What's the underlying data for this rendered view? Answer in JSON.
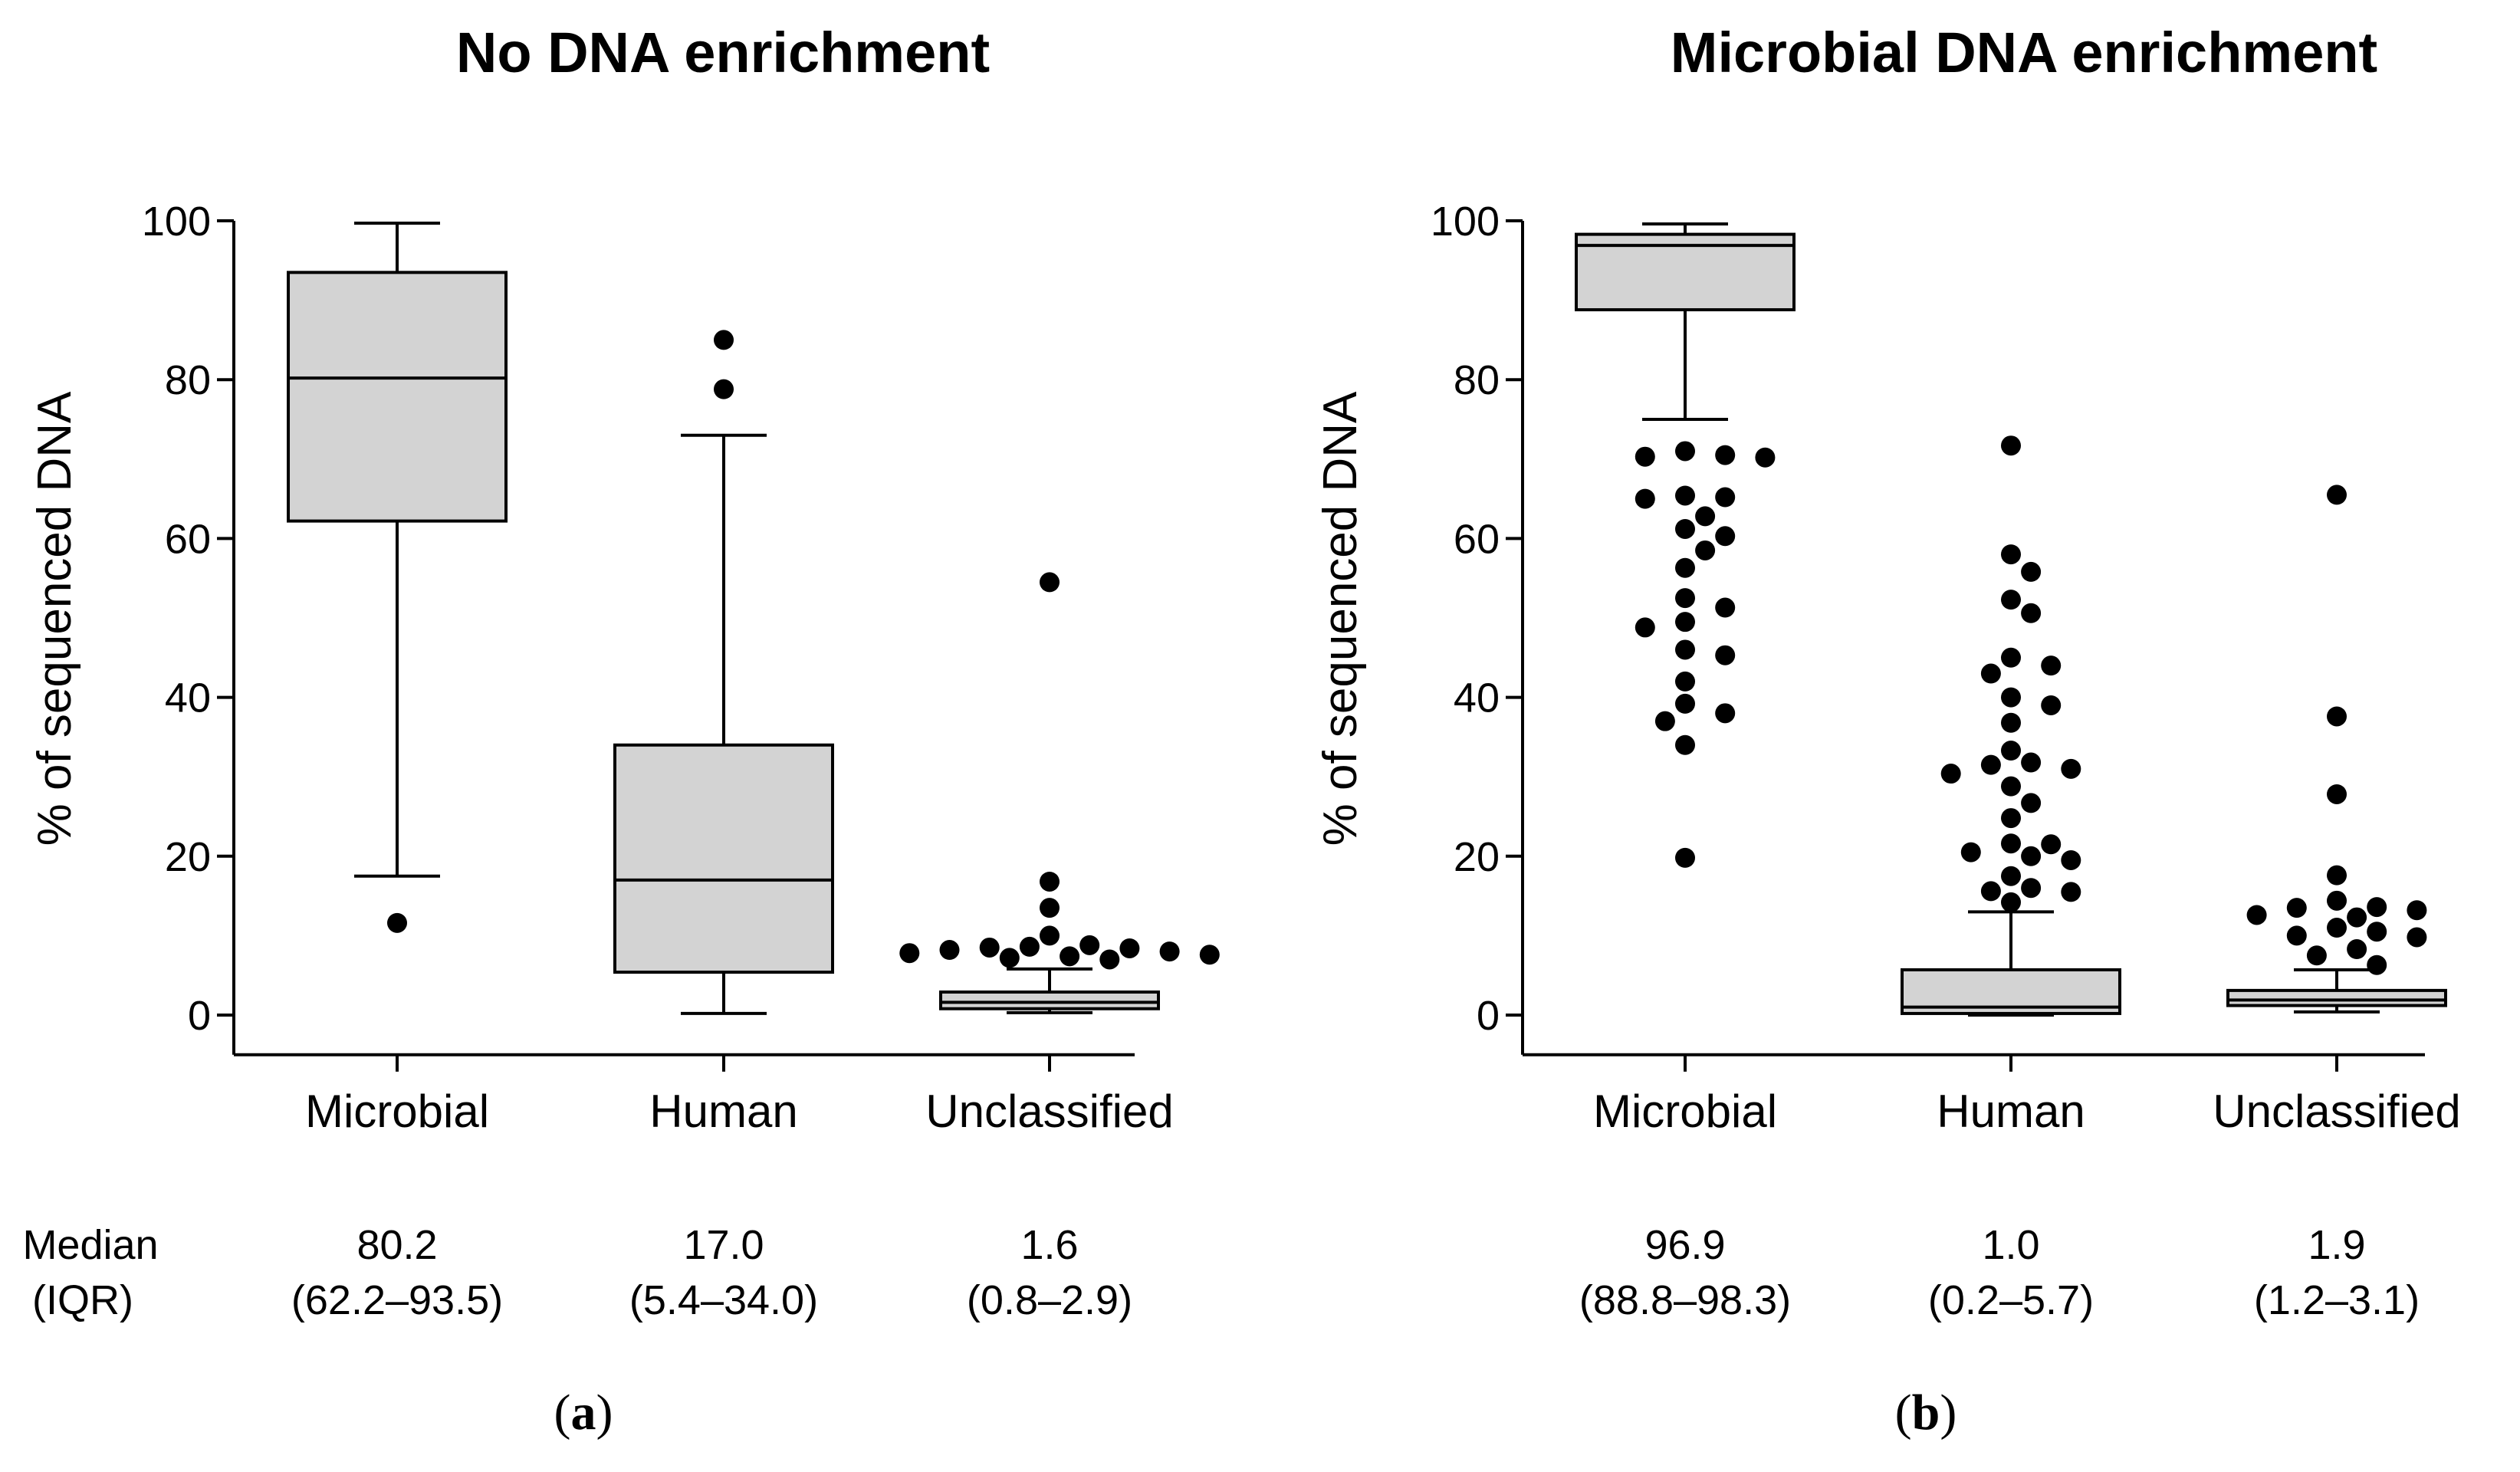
{
  "figure": {
    "row_label_line1": "Median",
    "row_label_line2": "(IQR)"
  },
  "chart_data": [
    {
      "type": "box",
      "panel": "(a)",
      "panel_letter": "a",
      "title": "No DNA enrichment",
      "xlabel": "",
      "ylabel": "% of sequenced DNA",
      "ylim": [
        -5,
        100
      ],
      "yticks": [
        0,
        20,
        40,
        60,
        80,
        100
      ],
      "ytick_labels": [
        "0",
        "20",
        "40",
        "60",
        "80",
        "100"
      ],
      "categories": [
        "Microbial",
        "Human",
        "Unclassified"
      ],
      "boxes": [
        {
          "category": "Microbial",
          "median": 80.2,
          "q1": 62.2,
          "q3": 93.5,
          "whisker_low": 17.5,
          "whisker_high": 99.7,
          "outliers": [
            11.6
          ],
          "median_label": "80.2",
          "iqr_label": "(62.2–93.5)"
        },
        {
          "category": "Human",
          "median": 17.0,
          "q1": 5.4,
          "q3": 34.0,
          "whisker_low": 0.2,
          "whisker_high": 73.0,
          "outliers": [
            85.0,
            78.8
          ],
          "median_label": "17.0",
          "iqr_label": "(5.4–34.0)"
        },
        {
          "category": "Unclassified",
          "median": 1.6,
          "q1": 0.8,
          "q3": 2.9,
          "whisker_low": 0.3,
          "whisker_high": 5.8,
          "outliers": [
            54.5,
            16.8,
            13.5,
            10.0,
            8.8,
            8.6,
            8.5,
            8.4,
            8.2,
            8.0,
            7.8,
            7.6,
            7.4,
            7.2,
            7.0
          ],
          "median_label": "1.6",
          "iqr_label": "(0.8–2.9)"
        }
      ]
    },
    {
      "type": "box",
      "panel": "(b)",
      "panel_letter": "b",
      "title": "Microbial DNA enrichment",
      "xlabel": "",
      "ylabel": "% of sequenced DNA",
      "ylim": [
        -5,
        100
      ],
      "yticks": [
        0,
        20,
        40,
        60,
        80,
        100
      ],
      "ytick_labels": [
        "0",
        "20",
        "40",
        "60",
        "80",
        "100"
      ],
      "categories": [
        "Microbial",
        "Human",
        "Unclassified"
      ],
      "boxes": [
        {
          "category": "Microbial",
          "median": 96.9,
          "q1": 88.8,
          "q3": 98.3,
          "whisker_low": 75.0,
          "whisker_high": 99.6,
          "outliers": [
            71.0,
            70.5,
            70.3,
            70.2,
            65.0,
            65.2,
            65.4,
            62.8,
            61.2,
            60.3,
            58.5,
            56.3,
            52.5,
            51.3,
            49.5,
            48.8,
            46.0,
            45.3,
            42.0,
            39.2,
            38.0,
            37.0,
            34.0,
            19.8
          ],
          "median_label": "96.9",
          "iqr_label": "(88.8–98.3)"
        },
        {
          "category": "Human",
          "median": 1.0,
          "q1": 0.2,
          "q3": 5.7,
          "whisker_low": 0.0,
          "whisker_high": 13.0,
          "outliers": [
            71.7,
            58.0,
            55.8,
            52.3,
            50.6,
            45.0,
            44.0,
            43.0,
            40.0,
            39.0,
            36.8,
            33.3,
            31.8,
            31.5,
            31.0,
            30.4,
            28.8,
            26.7,
            24.8,
            21.6,
            21.5,
            20.5,
            20.0,
            19.5,
            17.5,
            16.0,
            15.6,
            15.5,
            14.2
          ],
          "median_label": "1.0",
          "iqr_label": "(0.2–5.7)"
        },
        {
          "category": "Unclassified",
          "median": 1.9,
          "q1": 1.2,
          "q3": 3.1,
          "whisker_low": 0.4,
          "whisker_high": 5.7,
          "outliers": [
            65.5,
            37.6,
            27.8,
            17.6,
            14.4,
            13.6,
            13.5,
            13.2,
            12.6,
            12.3,
            11.0,
            10.5,
            10.0,
            9.8,
            8.3,
            7.5,
            6.3
          ],
          "median_label": "1.9",
          "iqr_label": "(1.2–3.1)"
        }
      ]
    }
  ]
}
